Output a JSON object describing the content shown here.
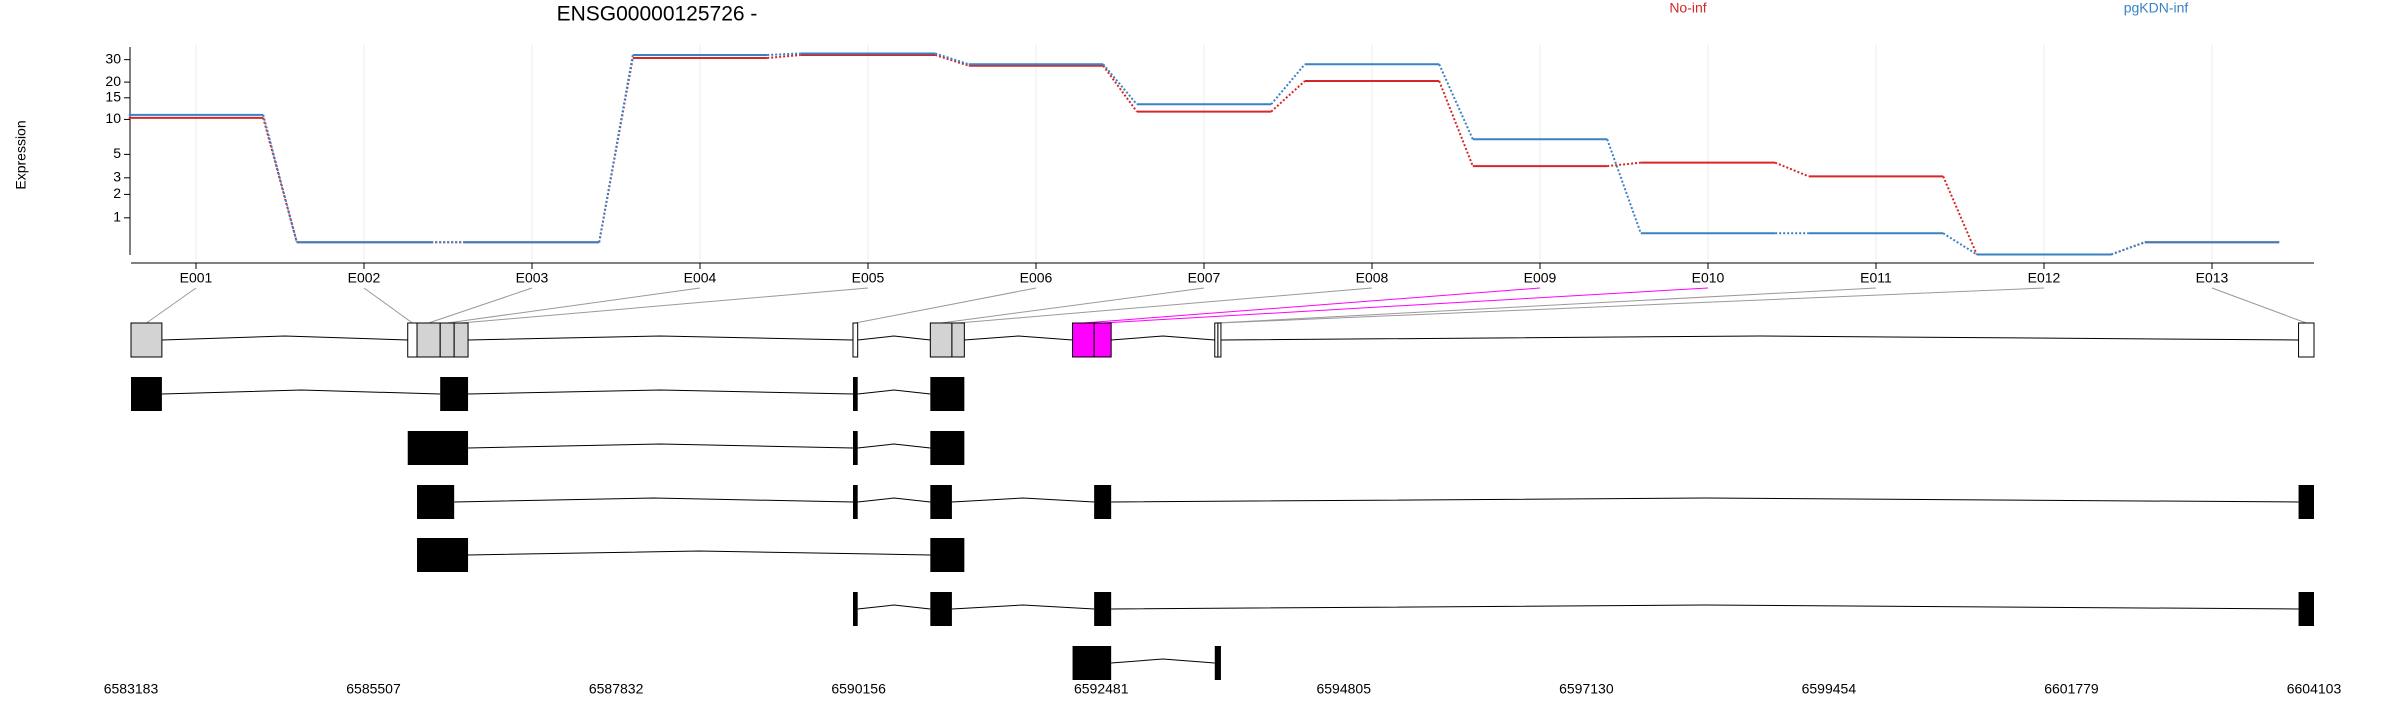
{
  "chart_data": {
    "type": "line",
    "title": "ENSG00000125726 -",
    "y_label": "Expression",
    "categories": [
      "E001",
      "E002",
      "E003",
      "E004",
      "E005",
      "E006",
      "E007",
      "E008",
      "E009",
      "E010",
      "E011",
      "E012",
      "E013"
    ],
    "series": [
      {
        "name": "No-inf",
        "color": "#d62728",
        "values": [
          10.3,
          0.31,
          0.31,
          30.9,
          32.6,
          26.9,
          11.6,
          20.4,
          3.9,
          4.2,
          3.1,
          0.06,
          0.31
        ]
      },
      {
        "name": "pgKDN-inf",
        "color": "#3a82c4",
        "values": [
          10.9,
          0.31,
          0.31,
          32.6,
          33.5,
          27.6,
          13.3,
          27.6,
          6.8,
          0.53,
          0.53,
          0.06,
          0.31
        ]
      }
    ],
    "yscale": "log1p",
    "ylim": [
      0.05,
      35
    ],
    "yticks": [
      1,
      2,
      3,
      5,
      10,
      15,
      20,
      30
    ],
    "grid": true,
    "exon_bins": [
      {
        "start": 6583183,
        "end": 6583479,
        "fill": "#d3d3d3"
      },
      {
        "start": 6585835,
        "end": 6585924,
        "fill": "#ffffff"
      },
      {
        "start": 6585924,
        "end": 6586146,
        "fill": "#d3d3d3"
      },
      {
        "start": 6586146,
        "end": 6586280,
        "fill": "#d3d3d3"
      },
      {
        "start": 6586280,
        "end": 6586413,
        "fill": "#d3d3d3"
      },
      {
        "start": 6590102,
        "end": 6590147,
        "fill": "#ffffff"
      },
      {
        "start": 6590843,
        "end": 6591050,
        "fill": "#d3d3d3"
      },
      {
        "start": 6591050,
        "end": 6591169,
        "fill": "#d3d3d3"
      },
      {
        "start": 6592206,
        "end": 6592413,
        "fill": "#ff00ff"
      },
      {
        "start": 6592413,
        "end": 6592576,
        "fill": "#ff00ff"
      },
      {
        "start": 6593569,
        "end": 6593599,
        "fill": "#ffffff"
      },
      {
        "start": 6593599,
        "end": 6593628,
        "fill": "#ffffff"
      },
      {
        "start": 6603955,
        "end": 6604103,
        "fill": "#ffffff"
      }
    ],
    "transcripts": [
      [
        [
          6583183,
          6583479
        ],
        [
          6586146,
          6586413
        ],
        [
          6590102,
          6590147
        ],
        [
          6590843,
          6591169
        ]
      ],
      [
        [
          6585835,
          6586413
        ],
        [
          6590102,
          6590147
        ],
        [
          6590843,
          6591169
        ]
      ],
      [
        [
          6585924,
          6586280
        ],
        [
          6590102,
          6590147
        ],
        [
          6590843,
          6591050
        ],
        [
          6592413,
          6592576
        ],
        [
          6603955,
          6604103
        ]
      ],
      [
        [
          6585924,
          6586413
        ],
        [
          6590843,
          6591169
        ]
      ],
      [
        [
          6590102,
          6590147
        ],
        [
          6590843,
          6591050
        ],
        [
          6592413,
          6592576
        ],
        [
          6603955,
          6604103
        ]
      ],
      [
        [
          6592206,
          6592576
        ],
        [
          6593569,
          6593628
        ]
      ]
    ],
    "xlim": [
      6583183,
      6604103
    ],
    "xticks": [
      6583183,
      6585507,
      6587832,
      6590156,
      6592481,
      6594805,
      6597130,
      6599454,
      6601779,
      6604103
    ]
  }
}
